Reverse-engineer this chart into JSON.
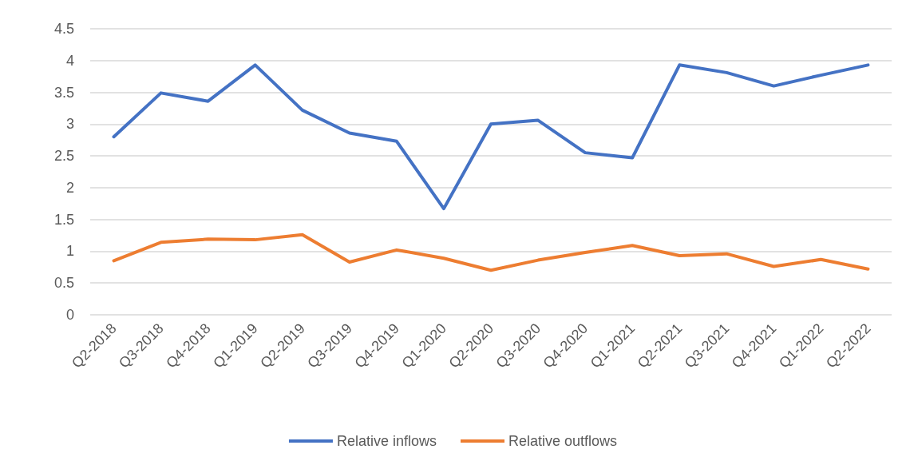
{
  "chart_data": {
    "type": "line",
    "categories": [
      "Q2-2018",
      "Q3-2018",
      "Q4-2018",
      "Q1-2019",
      "Q2-2019",
      "Q3-2019",
      "Q4-2019",
      "Q1-2020",
      "Q2-2020",
      "Q3-2020",
      "Q4-2020",
      "Q1-2021",
      "Q2-2021",
      "Q3-2021",
      "Q4-2021",
      "Q1-2022",
      "Q2-2022"
    ],
    "series": [
      {
        "name": "Relative inflows",
        "color": "#4472c4",
        "values": [
          2.8,
          3.49,
          3.36,
          3.93,
          3.22,
          2.86,
          2.73,
          1.67,
          3.0,
          3.06,
          2.55,
          2.47,
          3.93,
          3.81,
          3.6,
          3.77,
          3.93
        ]
      },
      {
        "name": "Relative outflows",
        "color": "#ed7d31",
        "values": [
          0.85,
          1.14,
          1.19,
          1.18,
          1.26,
          0.83,
          1.02,
          0.89,
          0.7,
          0.86,
          0.98,
          1.09,
          0.93,
          0.96,
          0.76,
          0.87,
          0.72
        ]
      }
    ],
    "ylim": [
      0,
      4.5
    ],
    "yticks": [
      0,
      0.5,
      1,
      1.5,
      2,
      2.5,
      3,
      3.5,
      4,
      4.5
    ],
    "grid": "y",
    "legend": "bottom",
    "marker": "none",
    "line_style": "solid"
  }
}
